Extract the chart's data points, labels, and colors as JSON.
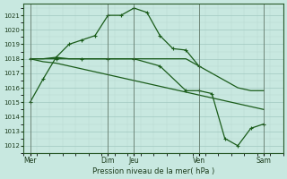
{
  "background_color": "#c8e8e0",
  "grid_major_color": "#a0c8c0",
  "grid_minor_color": "#b8d8d0",
  "line_color": "#1a5c1a",
  "ylim": [
    1011.5,
    1021.8
  ],
  "yticks": [
    1012,
    1013,
    1014,
    1015,
    1016,
    1017,
    1018,
    1019,
    1020,
    1021
  ],
  "xlabel": "Pression niveau de la mer( hPa )",
  "xtick_labels": [
    "Mer",
    "Dim",
    "Jeu",
    "Ven",
    "Sam"
  ],
  "xtick_positions": [
    0,
    6,
    8,
    13,
    18
  ],
  "xlim": [
    -0.5,
    19.5
  ],
  "line1_x": [
    0,
    1,
    2,
    3,
    4,
    5,
    6,
    7,
    8,
    9,
    10,
    11,
    12,
    13
  ],
  "line1_y": [
    1015.0,
    1016.6,
    1018.1,
    1019.0,
    1019.3,
    1019.6,
    1021.0,
    1021.0,
    1021.5,
    1021.2,
    1019.6,
    1018.7,
    1018.6,
    1017.5
  ],
  "line2_x": [
    0,
    1,
    2,
    3,
    4,
    5,
    6,
    7,
    8,
    9,
    10,
    11,
    12,
    13,
    14,
    15,
    16,
    17,
    18
  ],
  "line2_y": [
    1018.0,
    1018.0,
    1018.1,
    1018.0,
    1018.0,
    1018.0,
    1018.0,
    1018.0,
    1018.0,
    1018.0,
    1018.0,
    1018.0,
    1018.0,
    1017.5,
    1017.0,
    1016.5,
    1016.0,
    1015.8,
    1015.8
  ],
  "line3_x": [
    0,
    1,
    2,
    3,
    4,
    5,
    6,
    7,
    8,
    9,
    10,
    11,
    12,
    13,
    14,
    15,
    16,
    17,
    18
  ],
  "line3_y": [
    1018.0,
    1017.8,
    1017.7,
    1017.5,
    1017.3,
    1017.1,
    1016.9,
    1016.7,
    1016.5,
    1016.3,
    1016.1,
    1015.9,
    1015.7,
    1015.5,
    1015.3,
    1015.1,
    1014.9,
    1014.7,
    1014.5
  ],
  "line4_x": [
    0,
    2,
    4,
    6,
    8,
    10,
    12,
    13,
    14,
    15,
    16,
    17,
    18
  ],
  "line4_y": [
    1018.0,
    1018.0,
    1018.0,
    1018.0,
    1018.0,
    1017.5,
    1015.8,
    1015.8,
    1015.6,
    1012.5,
    1012.0,
    1013.2,
    1013.5
  ],
  "linewidth": 0.9,
  "marker_size": 3.5
}
